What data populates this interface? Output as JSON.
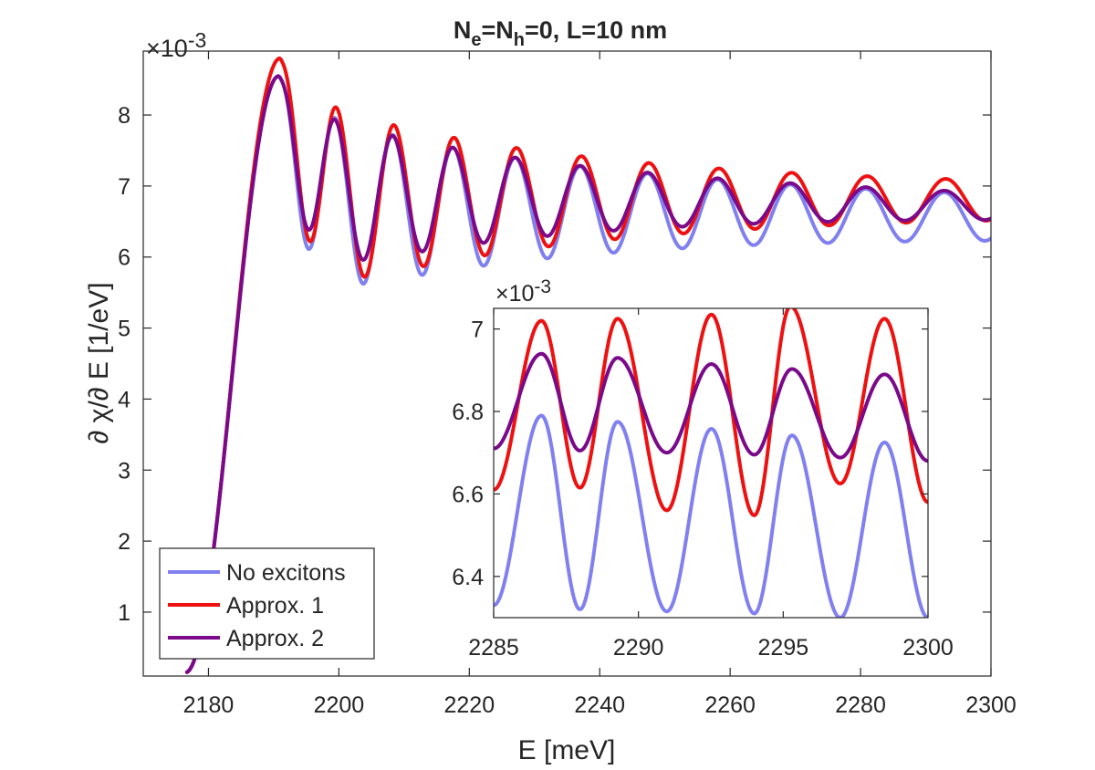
{
  "title": {
    "parts": [
      {
        "text": "N",
        "kind": "normal"
      },
      {
        "text": "e",
        "kind": "sub"
      },
      {
        "text": "=N",
        "kind": "normal"
      },
      {
        "text": "h",
        "kind": "sub"
      },
      {
        "text": "=0, L=10 nm",
        "kind": "normal"
      }
    ]
  },
  "chart_data": [
    {
      "id": "main",
      "type": "line",
      "xlabel": "E [meV]",
      "ylabel": "∂ χ/∂ E [1/eV]",
      "exponent_label": "×10",
      "exponent_power": "-3",
      "xlim": [
        2170,
        2300
      ],
      "ylim": [
        0.1,
        8.9
      ],
      "xticks": [
        2180,
        2200,
        2220,
        2240,
        2260,
        2280,
        2300
      ],
      "yticks": [
        1,
        2,
        3,
        4,
        5,
        6,
        7,
        8
      ],
      "legend": {
        "position": "bottom-left",
        "entries": [
          "No excitons",
          "Approx. 1",
          "Approx. 2"
        ]
      },
      "series": [
        {
          "name": "No excitons",
          "color": "#8080f0",
          "model": {
            "peak_x": 2190.8,
            "peak_y": 8.55,
            "period0": 8.4,
            "period_growth": 0.0045,
            "level": 6.72,
            "level_slope": -0.0015,
            "amp0": 1.45,
            "amp_decay": 40,
            "amp_floor": 0.25
          }
        },
        {
          "name": "Approx. 1",
          "color": "#ee1111",
          "model": {
            "peak_x": 2191.0,
            "peak_y": 8.8,
            "period0": 8.4,
            "period_growth": 0.0045,
            "level": 6.82,
            "level_slope": -0.0002,
            "amp0": 1.5,
            "amp_decay": 40,
            "amp_floor": 0.2
          }
        },
        {
          "name": "Approx. 2",
          "color": "#7a0a8a",
          "model": {
            "peak_x": 2190.8,
            "peak_y": 8.55,
            "period0": 8.4,
            "period_growth": 0.0045,
            "level": 6.88,
            "level_slope": -0.0015,
            "amp0": 1.25,
            "amp_decay": 40,
            "amp_floor": 0.12
          }
        }
      ]
    },
    {
      "id": "inset",
      "type": "line",
      "exponent_label": "×10",
      "exponent_power": "-3",
      "xlim": [
        2285,
        2300
      ],
      "ylim": [
        6.3,
        7.05
      ],
      "xticks": [
        2285,
        2290,
        2295,
        2300
      ],
      "yticks": [
        6.4,
        6.6,
        6.8,
        7
      ],
      "ytick_labels": [
        "6.4",
        "6.6",
        "6.8",
        "7"
      ],
      "series": [
        {
          "name": "No excitons",
          "color": "#8080f0",
          "peaks": [
            [
              2286.65,
              6.79
            ],
            [
              2289.28,
              6.775
            ],
            [
              2292.52,
              6.758
            ],
            [
              2295.3,
              6.742
            ],
            [
              2298.5,
              6.725
            ]
          ],
          "troughs": [
            [
              2285.0,
              6.33
            ],
            [
              2287.98,
              6.32
            ],
            [
              2290.98,
              6.315
            ],
            [
              2294.0,
              6.31
            ],
            [
              2296.97,
              6.3
            ],
            [
              2300.0,
              6.3
            ]
          ]
        },
        {
          "name": "Approx. 1",
          "color": "#ee1111",
          "peaks": [
            [
              2286.65,
              7.02
            ],
            [
              2289.28,
              7.025
            ],
            [
              2292.52,
              7.035
            ],
            [
              2295.25,
              7.055
            ],
            [
              2298.5,
              7.025
            ]
          ],
          "troughs": [
            [
              2285.0,
              6.61
            ],
            [
              2287.98,
              6.615
            ],
            [
              2290.98,
              6.56
            ],
            [
              2294.0,
              6.548
            ],
            [
              2296.97,
              6.625
            ],
            [
              2300.0,
              6.58
            ]
          ]
        },
        {
          "name": "Approx. 2",
          "color": "#7a0a8a",
          "peaks": [
            [
              2286.65,
              6.94
            ],
            [
              2289.28,
              6.93
            ],
            [
              2292.52,
              6.915
            ],
            [
              2295.3,
              6.903
            ],
            [
              2298.5,
              6.89
            ]
          ],
          "troughs": [
            [
              2285.0,
              6.71
            ],
            [
              2287.98,
              6.705
            ],
            [
              2290.98,
              6.7
            ],
            [
              2294.0,
              6.695
            ],
            [
              2296.97,
              6.688
            ],
            [
              2300.0,
              6.68
            ]
          ]
        }
      ]
    }
  ]
}
